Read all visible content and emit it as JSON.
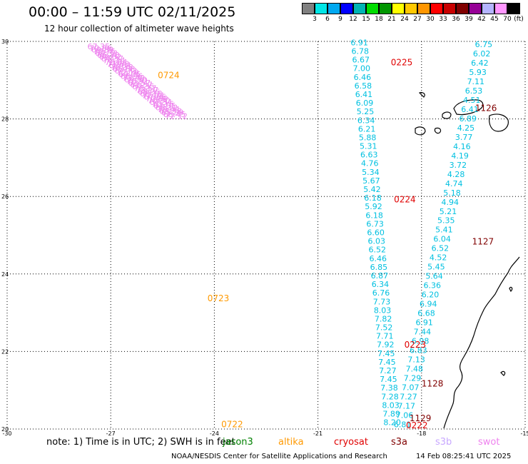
{
  "header": {
    "title": "00:00 – 11:59 UTC 02/11/2025",
    "subtitle": "12 hour collection of altimeter wave heights"
  },
  "colorbar": {
    "unit": "(ft)",
    "colors": [
      "#808080",
      "#00e5e5",
      "#00a8f0",
      "#0000ff",
      "#00b4b4",
      "#00dc00",
      "#009600",
      "#ffff00",
      "#ffc800",
      "#ff9600",
      "#ff0000",
      "#c80000",
      "#800000",
      "#960096",
      "#b4b4ff",
      "#ff96ff",
      "#000000"
    ],
    "labels": [
      "3",
      "6",
      "9",
      "12",
      "15",
      "18",
      "21",
      "24",
      "27",
      "30",
      "33",
      "36",
      "39",
      "42",
      "45",
      "70"
    ]
  },
  "axes": {
    "x_ticks": [
      "-30",
      "-27",
      "-24",
      "-21",
      "-18",
      "-15"
    ],
    "y_ticks": [
      "30",
      "28",
      "26",
      "24",
      "22",
      "20"
    ]
  },
  "tracks": [
    {
      "name": "altika",
      "color": "#ee82ee",
      "label": "0724",
      "label_color": "#ff9900",
      "label_index": 15,
      "start": [
        -27.35,
        29.8
      ],
      "end": [
        -25.1,
        28.0
      ],
      "values": [
        "67.35",
        "70.06",
        "69.89",
        "70.75",
        "69.33",
        "66.70",
        "69.62",
        "67.37",
        "76.24",
        "70.64",
        "71.68",
        "68.64",
        "70.38",
        "65.68",
        "67.73",
        "72.19",
        "69.05",
        "68.96",
        "73.40",
        "69.50",
        "70.91",
        "63.57",
        "67.57",
        "69.35",
        "73.17",
        "73.17",
        "68.35",
        "68.18",
        "72.04",
        "67.66",
        "70.69",
        "70.90",
        "67.34",
        "70.16",
        "67.55",
        "68.12",
        "70.44",
        "68.38",
        "65.59",
        "68.45",
        "72.12"
      ]
    },
    {
      "name": "cryosat",
      "color": "#00c0e0",
      "label": "0225",
      "label_color": "#e00000",
      "label_index": 2,
      "start": [
        -19.8,
        29.9
      ],
      "end": [
        -18.85,
        20.1
      ],
      "values": [
        "6.91",
        "6.78",
        "6.67",
        "7.00",
        "6.46",
        "6.58",
        "6.41",
        "6.09",
        "5.25",
        "6.34",
        "6.21",
        "5.88",
        "5.31",
        "6.63",
        "4.76",
        "5.34",
        "5.67",
        "5.42",
        "6.18",
        "5.92",
        "6.18",
        "6.73",
        "6.60",
        "6.03",
        "6.52",
        "6.46",
        "6.85",
        "6.87",
        "6.34",
        "6.76",
        "7.73",
        "8.03",
        "7.82",
        "7.52",
        "7.71",
        "7.92",
        "7.45",
        "7.45",
        "7.27",
        "7.45",
        "7.38",
        "7.28",
        "8.03",
        "7.89",
        "8.20"
      ]
    },
    {
      "name": "s3a",
      "color": "#00c0e0",
      "label": "1127",
      "label_color": "#800000",
      "label_index": 21,
      "start": [
        -16.2,
        29.85
      ],
      "end": [
        -18.55,
        20.05
      ],
      "values": [
        "6.75",
        "6.02",
        "6.42",
        "5.93",
        "7.11",
        "6.53",
        "4.51",
        "6.41",
        "6.89",
        "4.25",
        "3.77",
        "4.16",
        "4.19",
        "3.72",
        "4.28",
        "4.74",
        "5.18",
        "4.94",
        "5.21",
        "5.35",
        "5.41",
        "6.04",
        "6.52",
        "4.52",
        "5.45",
        "5.64",
        "6.36",
        "6.20",
        "6.94",
        "6.68",
        "6.91",
        "7.44",
        "6.98",
        "6.83",
        "7.13",
        "7.48",
        "7.29",
        "7.07",
        "7.27",
        "7.17",
        "7.06",
        "6.81"
      ]
    }
  ],
  "extra_labels": [
    {
      "text": "1126",
      "color": "#800000",
      "lon": -16.45,
      "lat": 28.2
    },
    {
      "text": "0224",
      "color": "#e00000",
      "lon": -18.8,
      "lat": 25.85
    },
    {
      "text": "0723",
      "color": "#ff9900",
      "lon": -24.2,
      "lat": 23.3
    },
    {
      "text": "0223",
      "color": "#e00000",
      "lon": -18.5,
      "lat": 22.1
    },
    {
      "text": "1128",
      "color": "#800000",
      "lon": -18.0,
      "lat": 21.1
    },
    {
      "text": "0722",
      "color": "#ff9900",
      "lon": -23.8,
      "lat": 20.05
    },
    {
      "text": "1129",
      "color": "#800000",
      "lon": -18.35,
      "lat": 20.2
    },
    {
      "text": "0222",
      "color": "#e00000",
      "lon": -18.45,
      "lat": 20.02
    }
  ],
  "footer": {
    "note": "note: 1) Time is in UTC; 2) SWH is in feet",
    "satellites": [
      {
        "name": "jason3",
        "color": "#008000"
      },
      {
        "name": "altika",
        "color": "#ff9900"
      },
      {
        "name": "cryosat",
        "color": "#e00000"
      },
      {
        "name": "s3a",
        "color": "#800000"
      },
      {
        "name": "s3b",
        "color": "#c8a8ff"
      },
      {
        "name": "swot",
        "color": "#ee82ee"
      }
    ],
    "credit": "NOAA/NESDIS Center for Satellite Applications and Research",
    "timestamp": "14 Feb 08:25:41 UTC 2025"
  }
}
